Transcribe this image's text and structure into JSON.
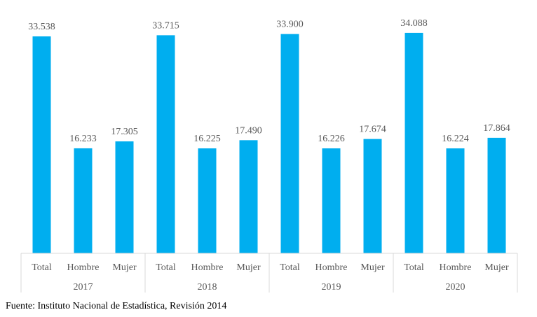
{
  "chart_data": {
    "type": "bar",
    "groups": [
      "2017",
      "2018",
      "2019",
      "2020"
    ],
    "categories": [
      "Total",
      "Hombre",
      "Mujer"
    ],
    "values": [
      [
        33538,
        16233,
        17305
      ],
      [
        33715,
        16225,
        17490
      ],
      [
        33900,
        16226,
        17674
      ],
      [
        34088,
        16224,
        17864
      ]
    ],
    "data_labels": [
      [
        "33.538",
        "16.233",
        "17.305"
      ],
      [
        "33.715",
        "16.225",
        "17.490"
      ],
      [
        "33.900",
        "16.226",
        "17.674"
      ],
      [
        "34.088",
        "16.224",
        "17.864"
      ]
    ],
    "ylim": [
      0,
      37000
    ],
    "grid": false,
    "legend": "none"
  },
  "colors": {
    "bar": "#00AEEF",
    "axis": "#d9d9d9",
    "text": "#595959"
  },
  "source": "Fuente: Instituto Nacional de Estadística, Revisión 2014"
}
